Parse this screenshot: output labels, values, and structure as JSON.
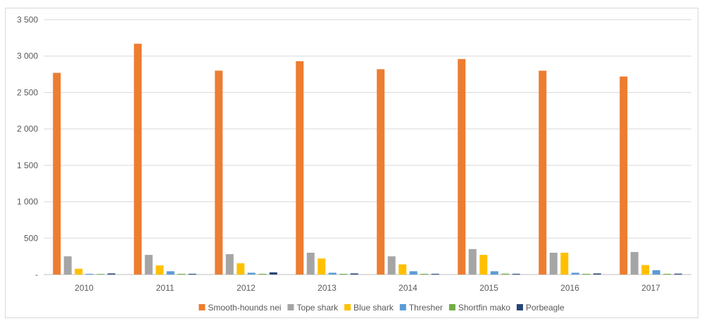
{
  "chart_data": {
    "type": "bar",
    "categories": [
      "2010",
      "2011",
      "2012",
      "2013",
      "2014",
      "2015",
      "2016",
      "2017"
    ],
    "series": [
      {
        "name": "Smooth-hounds nei",
        "color": "#ED7D31",
        "values": [
          2770,
          3170,
          2800,
          2930,
          2820,
          2960,
          2800,
          2720
        ]
      },
      {
        "name": "Tope shark",
        "color": "#A5A5A5",
        "values": [
          250,
          270,
          280,
          300,
          250,
          350,
          300,
          310
        ]
      },
      {
        "name": "Blue shark",
        "color": "#FFC000",
        "values": [
          80,
          125,
          155,
          220,
          140,
          270,
          300,
          130
        ]
      },
      {
        "name": "Thresher",
        "color": "#5B9BD5",
        "values": [
          10,
          45,
          25,
          25,
          45,
          45,
          25,
          60
        ]
      },
      {
        "name": "Shortfin mako",
        "color": "#70AD47",
        "values": [
          8,
          10,
          10,
          10,
          10,
          12,
          10,
          10
        ]
      },
      {
        "name": "Porbeagle",
        "color": "#264478",
        "values": [
          15,
          10,
          30,
          15,
          10,
          10,
          15,
          12
        ]
      }
    ],
    "y_ticks": [
      "-",
      "500",
      "1 000",
      "1 500",
      "2 000",
      "2 500",
      "3 000",
      "3 500"
    ],
    "ylim": [
      0,
      3500
    ],
    "grid": true,
    "legend_position": "bottom"
  }
}
